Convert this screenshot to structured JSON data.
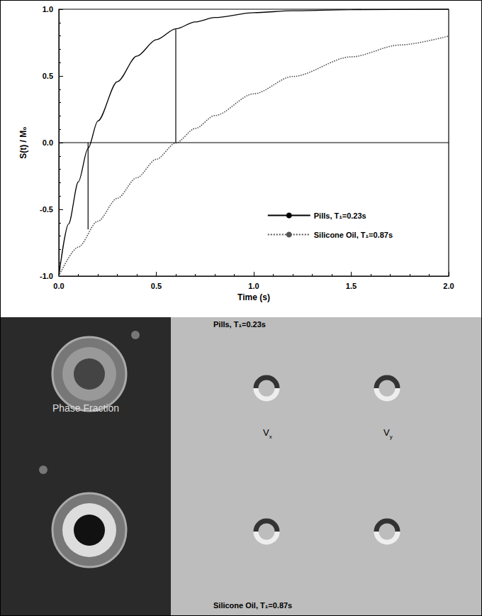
{
  "chart_data": {
    "type": "line",
    "y_label": "S(t) / M₀",
    "x_label": "Time (s)",
    "xlim": [
      0,
      2
    ],
    "xticks": [
      {
        "value": 0,
        "label": "0.0"
      },
      {
        "value": 0.5,
        "label": "0.5"
      },
      {
        "value": 1,
        "label": "1.0"
      },
      {
        "value": 1.5,
        "label": "1.5"
      },
      {
        "value": 2,
        "label": "2.0"
      }
    ],
    "ylim": [
      -1,
      1
    ],
    "yticks": [
      {
        "value": -1,
        "label": "-1.0"
      },
      {
        "value": -0.5,
        "label": "-0.5"
      },
      {
        "value": 0,
        "label": "0.0"
      },
      {
        "value": 0.5,
        "label": "0.5"
      },
      {
        "value": 1,
        "label": "1.0"
      }
    ],
    "grid": false,
    "legend": "lower right",
    "series": [
      {
        "name": "Pills, T₁=0.23s",
        "color": "#000000",
        "line_style": "solid",
        "x": [
          0,
          0.05,
          0.1,
          0.15,
          0.2,
          0.3,
          0.4,
          0.5,
          0.6,
          0.7,
          0.8,
          1.0,
          1.2,
          1.5,
          2.0
        ],
        "values": [
          -1.0,
          -0.61,
          -0.294,
          -0.042,
          0.162,
          0.457,
          0.648,
          0.772,
          0.853,
          0.905,
          0.938,
          0.974,
          0.989,
          0.997,
          1.0
        ]
      },
      {
        "name": "Silicone Oil, T₁=0.87s",
        "color": "#555555",
        "line_style": "dotted",
        "x": [
          0,
          0.1,
          0.2,
          0.3,
          0.4,
          0.5,
          0.6,
          0.7,
          0.8,
          1.0,
          1.2,
          1.5,
          1.75,
          2.0
        ],
        "values": [
          -1.0,
          -0.783,
          -0.589,
          -0.417,
          -0.263,
          -0.125,
          -0.003,
          0.106,
          0.203,
          0.366,
          0.496,
          0.643,
          0.732,
          0.799
        ]
      }
    ],
    "hline": 0,
    "segments": [
      {
        "x": 0.15,
        "y": [
          -0.65,
          0.0
        ]
      },
      {
        "x": 0.6,
        "y": [
          0.0,
          0.85
        ]
      }
    ]
  },
  "image_panel": {
    "top_label": "Pills, T₁=0.23s",
    "left_label": "Phase Fraction",
    "component_labels": [
      {
        "text": "V",
        "subscript": "x"
      },
      {
        "text": "V",
        "subscript": "y"
      }
    ],
    "bottom_label": "Silicone Oil, T₁=0.87s"
  }
}
